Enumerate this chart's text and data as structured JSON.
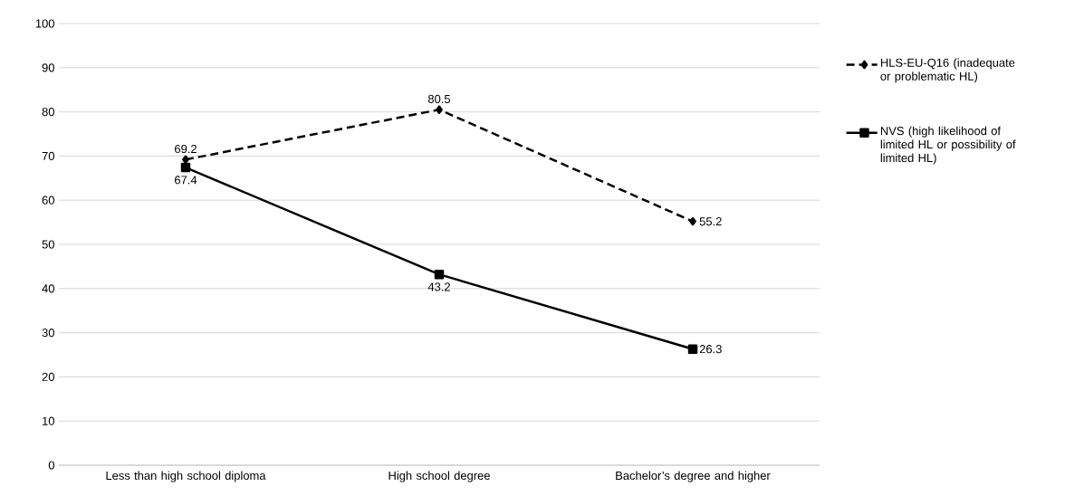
{
  "chart_data": {
    "type": "line",
    "categories": [
      "Less than high school diploma",
      "High school degree",
      "Bachelor’s degree and higher"
    ],
    "series": [
      {
        "name": "HLS-EU-Q16 (inadequate or problematic HL)",
        "color": "#000000",
        "values": [
          69.2,
          80.5,
          55.2
        ],
        "marker": "diamond",
        "line_style": "dashed"
      },
      {
        "name": "NVS (high likelihood of limited HL or possibility of limited HL)",
        "color": "#000000",
        "values": [
          67.4,
          43.2,
          26.3
        ],
        "marker": "square",
        "line_style": "solid"
      }
    ],
    "ylim": [
      0,
      100
    ],
    "yticks": [
      0,
      10,
      20,
      30,
      40,
      50,
      60,
      70,
      80,
      90,
      100
    ],
    "grid": "y",
    "legend": "right",
    "data_labels": true
  }
}
